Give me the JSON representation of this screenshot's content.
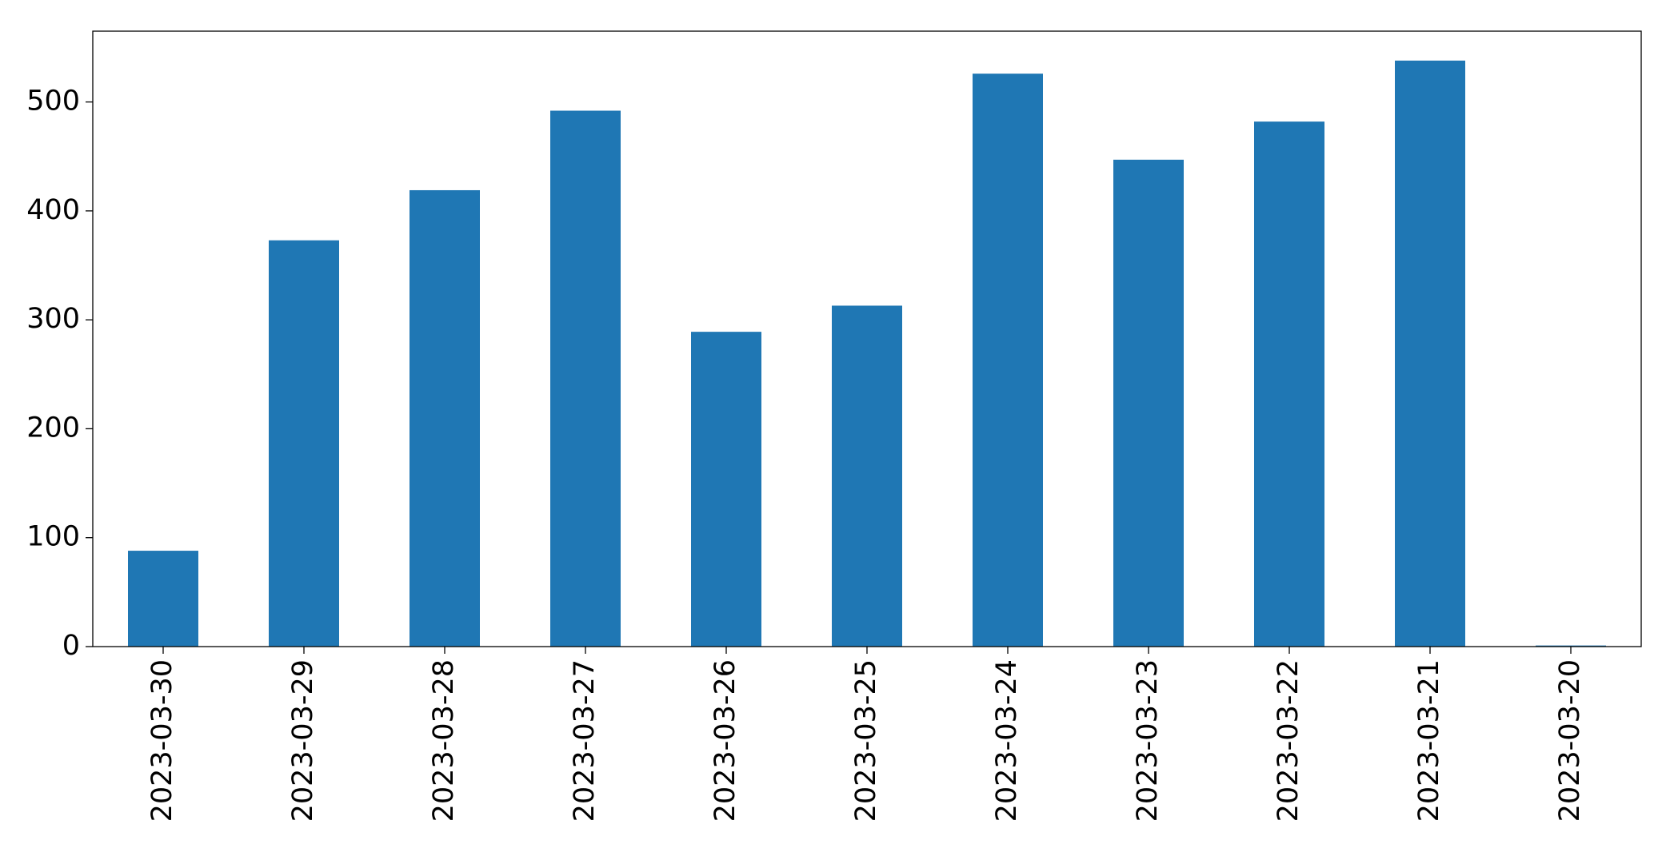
{
  "chart_data": {
    "type": "bar",
    "categories": [
      "2023-03-30",
      "2023-03-29",
      "2023-03-28",
      "2023-03-27",
      "2023-03-26",
      "2023-03-25",
      "2023-03-24",
      "2023-03-23",
      "2023-03-22",
      "2023-03-21",
      "2023-03-20"
    ],
    "values": [
      88,
      373,
      419,
      492,
      289,
      313,
      526,
      447,
      482,
      538,
      1
    ],
    "color": "#1f77b4",
    "ylim": [
      0,
      565
    ],
    "yticks": [
      0,
      100,
      200,
      300,
      400,
      500
    ],
    "grid": false
  }
}
